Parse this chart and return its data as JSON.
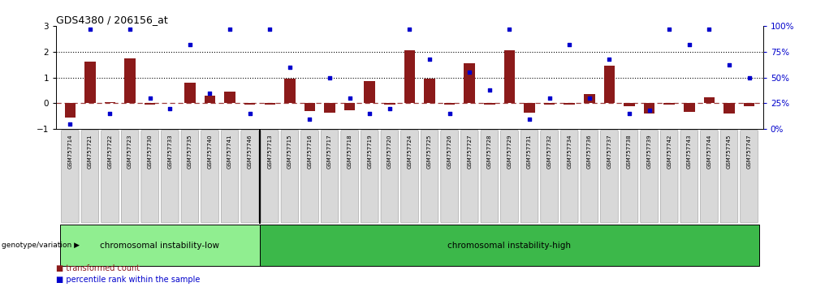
{
  "title": "GDS4380 / 206156_at",
  "samples": [
    "GSM757714",
    "GSM757721",
    "GSM757722",
    "GSM757723",
    "GSM757730",
    "GSM757733",
    "GSM757735",
    "GSM757740",
    "GSM757741",
    "GSM757746",
    "GSM757713",
    "GSM757715",
    "GSM757716",
    "GSM757717",
    "GSM757718",
    "GSM757719",
    "GSM757720",
    "GSM757724",
    "GSM757725",
    "GSM757726",
    "GSM757727",
    "GSM757728",
    "GSM757729",
    "GSM757731",
    "GSM757732",
    "GSM757734",
    "GSM757736",
    "GSM757737",
    "GSM757738",
    "GSM757739",
    "GSM757742",
    "GSM757743",
    "GSM757744",
    "GSM757745",
    "GSM757747"
  ],
  "bar_values": [
    -0.55,
    1.6,
    0.05,
    1.75,
    -0.05,
    0.02,
    0.8,
    0.3,
    0.45,
    -0.05,
    -0.05,
    0.95,
    -0.3,
    -0.35,
    -0.28,
    0.85,
    -0.05,
    2.05,
    0.95,
    -0.05,
    1.55,
    -0.05,
    2.05,
    -0.35,
    -0.05,
    -0.05,
    0.35,
    1.45,
    -0.12,
    -0.38,
    -0.05,
    -0.32,
    0.22,
    -0.38,
    -0.12
  ],
  "percentile_values": [
    5,
    97,
    15,
    97,
    30,
    20,
    82,
    35,
    97,
    15,
    97,
    60,
    10,
    50,
    30,
    15,
    20,
    97,
    68,
    15,
    55,
    38,
    97,
    10,
    30,
    82,
    30,
    68,
    15,
    18,
    97,
    82,
    97,
    62,
    50
  ],
  "group1_label": "chromosomal instability-low",
  "group2_label": "chromosomal instability-high",
  "group1_count": 10,
  "group2_count": 25,
  "group1_color": "#90EE90",
  "group2_color": "#3CB84A",
  "bar_color": "#8B1A1A",
  "dot_color": "#0000CC",
  "zero_line_color": "#8B1A1A",
  "ylim_left": [
    -1,
    3
  ],
  "ylim_right": [
    0,
    100
  ],
  "yticks_left": [
    -1,
    0,
    1,
    2,
    3
  ],
  "yticks_right": [
    0,
    25,
    50,
    75,
    100
  ],
  "legend_bar_label": "transformed count",
  "legend_dot_label": "percentile rank within the sample",
  "genotype_label": "genotype/variation"
}
